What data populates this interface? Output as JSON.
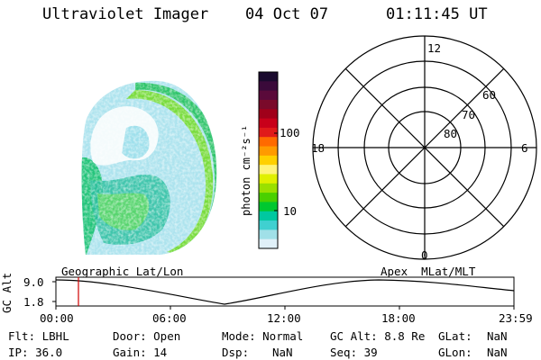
{
  "header": {
    "title": "Ultraviolet Imager",
    "date": "04 Oct 07",
    "time": "01:11:45 UT"
  },
  "colorbar": {
    "unit_label": "photon cm⁻²s⁻¹",
    "ticks": [
      "100",
      "10"
    ],
    "colors": [
      "#1a0a2e",
      "#3a0a3a",
      "#5a0a3a",
      "#7a0a2a",
      "#a0001a",
      "#c8001a",
      "#e01a1a",
      "#ff6a00",
      "#ff9a00",
      "#ffd000",
      "#fff37a",
      "#e0f000",
      "#9ae000",
      "#4ad000",
      "#00c830",
      "#00c8a0",
      "#40d0d0",
      "#a0e0e8",
      "#e0f0f8"
    ]
  },
  "polar_grid": {
    "mlt_labels": [
      "12",
      "18",
      "6",
      "0"
    ],
    "lat_labels": [
      "60",
      "70",
      "80"
    ]
  },
  "timeline": {
    "axis_label": "GC Alt",
    "y_ticks": [
      "9.0",
      "1.8"
    ],
    "left_label": "Geographic Lat/Lon",
    "right_label": "Apex  MLat/MLT",
    "x_ticks": [
      "00:00",
      "06:00",
      "12:00",
      "18:00",
      "23:59"
    ],
    "marker_color": "#d00000"
  },
  "info": {
    "flt": "Flt: LBHL",
    "ip": "IP: 36.0",
    "door": "Door: Open",
    "gain": "Gain: 14",
    "mode": "Mode: Normal",
    "dsp_label": "Dsp:",
    "dsp_value": "NaN",
    "gcalt": "GC Alt: 8.8 Re",
    "seq": "Seq: 39",
    "glat_label": "GLat:",
    "glat_value": "NaN",
    "glon_label": "GLon:",
    "glon_value": "NaN"
  }
}
